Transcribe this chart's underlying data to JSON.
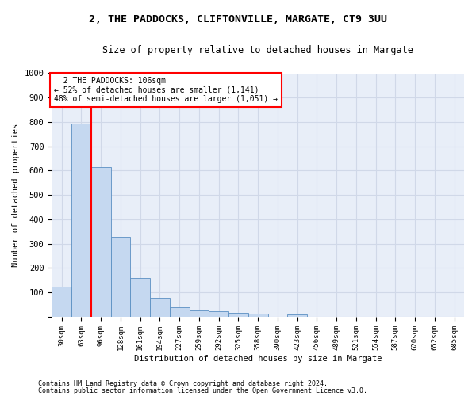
{
  "title_line1": "2, THE PADDOCKS, CLIFTONVILLE, MARGATE, CT9 3UU",
  "title_line2": "Size of property relative to detached houses in Margate",
  "xlabel": "Distribution of detached houses by size in Margate",
  "ylabel": "Number of detached properties",
  "categories": [
    "30sqm",
    "63sqm",
    "96sqm",
    "128sqm",
    "161sqm",
    "194sqm",
    "227sqm",
    "259sqm",
    "292sqm",
    "325sqm",
    "358sqm",
    "390sqm",
    "423sqm",
    "456sqm",
    "489sqm",
    "521sqm",
    "554sqm",
    "587sqm",
    "620sqm",
    "652sqm",
    "685sqm"
  ],
  "values": [
    125,
    795,
    615,
    328,
    160,
    78,
    40,
    27,
    22,
    15,
    14,
    0,
    10,
    0,
    0,
    0,
    0,
    0,
    0,
    0,
    0
  ],
  "bar_color": "#c5d8f0",
  "bar_edge_color": "#5a8fc2",
  "vline_x": 1.5,
  "vline_color": "red",
  "annotation_text": "  2 THE PADDOCKS: 106sqm\n← 52% of detached houses are smaller (1,141)\n48% of semi-detached houses are larger (1,051) →",
  "annotation_box_color": "white",
  "annotation_box_edge": "red",
  "ylim": [
    0,
    1000
  ],
  "yticks": [
    0,
    100,
    200,
    300,
    400,
    500,
    600,
    700,
    800,
    900,
    1000
  ],
  "footer_line1": "Contains HM Land Registry data © Crown copyright and database right 2024.",
  "footer_line2": "Contains public sector information licensed under the Open Government Licence v3.0.",
  "background_color": "#e8eef8",
  "plot_background": "#ffffff",
  "grid_color": "#d0d8e8"
}
